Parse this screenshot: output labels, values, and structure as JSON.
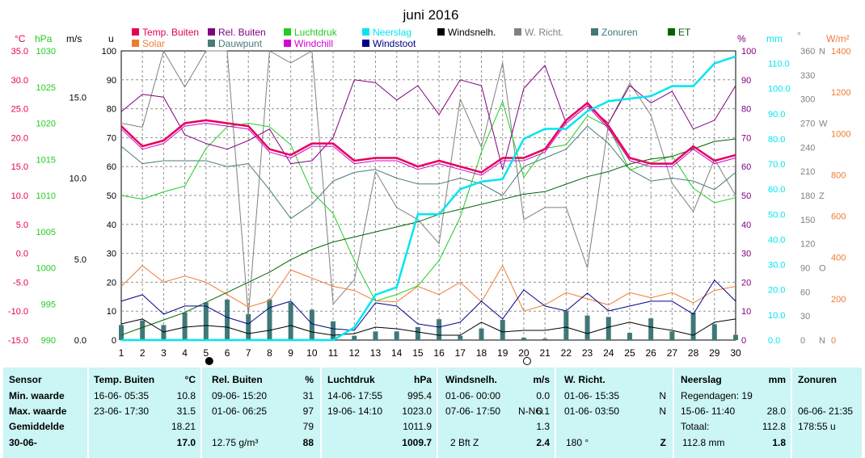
{
  "title": "juni 2016",
  "colors": {
    "temp": "#e6005a",
    "solar": "#f07a30",
    "hum": "#800080",
    "dew": "#4a7a7a",
    "press": "#22cc22",
    "windchill": "#d400d4",
    "rain": "#00e6f0",
    "gust": "#00008b",
    "wind": "#000000",
    "dir": "#808080",
    "sun": "#407878",
    "et": "#006400"
  },
  "legend": [
    {
      "label": "Temp. Buiten",
      "color": "#e6005a"
    },
    {
      "label": "Solar",
      "color": "#f07a30"
    },
    {
      "label": "Rel. Buiten",
      "color": "#800080"
    },
    {
      "label": "Dauwpunt",
      "color": "#4a7a7a"
    },
    {
      "label": "Luchtdruk",
      "color": "#22cc22"
    },
    {
      "label": "Windchill",
      "color": "#d400d4"
    },
    {
      "label": "Neerslag",
      "color": "#00e6f0"
    },
    {
      "label": "Windstoot",
      "color": "#00008b"
    },
    {
      "label": "Windsnelh.",
      "color": "#000000"
    },
    {
      "label": "W. Richt.",
      "color": "#808080"
    },
    {
      "label": "Zonuren",
      "color": "#407878"
    },
    {
      "label": "ET",
      "color": "#006400"
    }
  ],
  "axes": {
    "temp": {
      "unit": "°C",
      "ticks": [
        "35.0",
        "30.0",
        "25.0",
        "20.0",
        "15.0",
        "10.0",
        "5.0",
        "0.0",
        "-5.0",
        "-10.0",
        "-15.0"
      ]
    },
    "press": {
      "unit": "hPa",
      "ticks": [
        "1030",
        "1025",
        "1020",
        "1015",
        "1010",
        "1005",
        "1000",
        "995",
        "990"
      ]
    },
    "wind": {
      "unit": "m/s",
      "ticks": [
        "15.0",
        "10.0",
        "5.0",
        "0.0"
      ]
    },
    "u": {
      "unit": "u",
      "ticks": [
        "100",
        "90",
        "80",
        "70",
        "60",
        "50",
        "40",
        "30",
        "20",
        "10",
        "0"
      ]
    },
    "pct": {
      "unit": "%",
      "ticks": [
        "100",
        "90",
        "80",
        "70",
        "60",
        "50",
        "40",
        "30",
        "20",
        "10",
        "0"
      ]
    },
    "mm": {
      "unit": "mm",
      "ticks": [
        "110.0",
        "100.0",
        "90.0",
        "80.0",
        "70.0",
        "60.0",
        "50.0",
        "40.0",
        "30.0",
        "20.0",
        "10.0",
        "0.0"
      ]
    },
    "deg": {
      "unit": "°",
      "ticks": [
        "360",
        "330",
        "300",
        "270",
        "240",
        "210",
        "180",
        "150",
        "120",
        "90",
        "60",
        "30",
        "0"
      ]
    },
    "compass": [
      "N",
      "W",
      "Z",
      "O",
      "N"
    ],
    "wm2": {
      "unit": "W/m²",
      "ticks": [
        "1400",
        "1200",
        "1000",
        "800",
        "600",
        "400",
        "200",
        "0"
      ]
    }
  },
  "chart_data": {
    "type": "line",
    "x": [
      1,
      2,
      3,
      4,
      5,
      6,
      7,
      8,
      9,
      10,
      11,
      12,
      13,
      14,
      15,
      16,
      17,
      18,
      19,
      20,
      21,
      22,
      23,
      24,
      25,
      26,
      27,
      28,
      29,
      30
    ],
    "moon_markers": [
      {
        "day": 5,
        "phase": "full"
      },
      {
        "day": 20,
        "phase": "new"
      }
    ],
    "series": [
      {
        "name": "Temp. Buiten",
        "unit": "°C",
        "axis": "temp",
        "values": [
          22.0,
          18.5,
          19.5,
          22.5,
          23.0,
          22.5,
          22.0,
          18.0,
          17.0,
          19.0,
          19.0,
          16.0,
          16.5,
          16.5,
          15.0,
          16.0,
          15.0,
          14.0,
          16.5,
          16.5,
          18.0,
          23.0,
          26.0,
          22.0,
          16.5,
          15.5,
          15.5,
          18.5,
          16.0,
          17.0
        ]
      },
      {
        "name": "Windchill",
        "unit": "°C",
        "axis": "temp",
        "values": [
          21.5,
          18.0,
          19.0,
          22.0,
          22.5,
          22.0,
          21.5,
          17.5,
          16.5,
          18.5,
          18.5,
          15.5,
          16.0,
          16.0,
          14.5,
          15.5,
          14.5,
          13.5,
          16.0,
          16.0,
          17.5,
          22.5,
          25.5,
          21.5,
          16.0,
          15.0,
          15.0,
          18.0,
          15.5,
          16.5
        ]
      },
      {
        "name": "Dauwpunt",
        "unit": "°C",
        "axis": "temp",
        "values": [
          18.5,
          15.5,
          16.0,
          16.0,
          16.0,
          15.0,
          15.5,
          11.0,
          6.0,
          8.5,
          12.5,
          14.0,
          14.5,
          13.0,
          12.0,
          12.0,
          13.0,
          12.0,
          10.0,
          15.0,
          16.5,
          18.0,
          22.0,
          19.0,
          14.5,
          12.5,
          13.0,
          12.5,
          11.0,
          14.0
        ]
      },
      {
        "name": "Rel. Buiten",
        "unit": "%",
        "axis": "pct",
        "values": [
          79,
          85,
          84,
          71,
          68,
          66,
          69,
          73,
          61,
          62,
          70,
          90,
          89,
          83,
          88,
          78,
          90,
          88,
          59,
          87,
          95,
          75,
          81,
          75,
          88,
          82,
          86,
          73,
          76,
          88
        ]
      },
      {
        "name": "Luchtdruk",
        "unit": "hPa",
        "axis": "press",
        "values": [
          1010.0,
          1009.5,
          1010.5,
          1011.3,
          1016.5,
          1019.5,
          1020.0,
          1019.5,
          1017.0,
          1010.5,
          1007.5,
          1001.0,
          995.4,
          996.3,
          997.5,
          1001.0,
          1007.0,
          1016.0,
          1023.0,
          1012.5,
          1016.5,
          1017.0,
          1021.0,
          1019.5,
          1013.5,
          1014.5,
          1015.5,
          1011.0,
          1009.0,
          1009.7
        ]
      },
      {
        "name": "Neerslag",
        "unit": "mm",
        "axis": "mm",
        "values": [
          0,
          0,
          0,
          0,
          0,
          0,
          0,
          0,
          0,
          0,
          0,
          5,
          18,
          21,
          50,
          50,
          60,
          63,
          64,
          80,
          84,
          84,
          91,
          95,
          96,
          97,
          101,
          101,
          110,
          112.8
        ]
      },
      {
        "name": "ET",
        "unit": "mm",
        "axis": "mm",
        "values": [
          2,
          5,
          8,
          11,
          15,
          19,
          23,
          27,
          32,
          36,
          39,
          41,
          43,
          45,
          47,
          50,
          52,
          54,
          56,
          58,
          59,
          62,
          65,
          67,
          70,
          72,
          73,
          76,
          79,
          80
        ]
      },
      {
        "name": "Windsnelh.",
        "unit": "m/s",
        "axis": "wind",
        "values": [
          1.0,
          1.3,
          0.5,
          0.8,
          0.9,
          0.8,
          0.4,
          0.6,
          0.9,
          0.5,
          0.3,
          0.4,
          0.8,
          0.7,
          0.5,
          0.3,
          0.3,
          1.1,
          0.5,
          0.6,
          0.6,
          0.8,
          0.4,
          0.8,
          1.1,
          0.8,
          0.6,
          0.3,
          1.1,
          1.3
        ]
      },
      {
        "name": "Windstoot",
        "unit": "m/s",
        "axis": "wind",
        "values": [
          2.4,
          2.8,
          1.6,
          2.1,
          2.1,
          1.4,
          1.0,
          2.0,
          2.4,
          1.0,
          0.7,
          0.6,
          2.3,
          2.1,
          1.0,
          0.8,
          1.1,
          2.4,
          1.3,
          3.1,
          2.1,
          1.8,
          2.9,
          1.8,
          2.1,
          2.4,
          2.4,
          1.6,
          3.7,
          2.4
        ]
      },
      {
        "name": "W. Richt.",
        "unit": "°",
        "axis": "deg",
        "values": [
          270,
          265,
          360,
          315,
          360,
          360,
          30,
          360,
          345,
          360,
          45,
          75,
          210,
          165,
          150,
          120,
          300,
          240,
          345,
          150,
          165,
          165,
          90,
          270,
          320,
          280,
          195,
          160,
          225,
          180
        ]
      },
      {
        "name": "Solar",
        "unit": "W/m²",
        "axis": "wm2",
        "values": [
          260,
          360,
          280,
          310,
          280,
          220,
          160,
          190,
          340,
          300,
          260,
          240,
          190,
          185,
          260,
          220,
          280,
          185,
          360,
          140,
          170,
          230,
          200,
          170,
          230,
          205,
          230,
          180,
          240,
          260
        ]
      },
      {
        "name": "Zonuren",
        "unit": "u",
        "axis": "u",
        "values": [
          5.2,
          6.8,
          5.2,
          9.5,
          13.0,
          14.0,
          9.0,
          14.0,
          13.0,
          10.5,
          6.5,
          1.5,
          3.0,
          3.0,
          4.5,
          7.2,
          1.5,
          4.0,
          7.0,
          0.8,
          0.5,
          10.0,
          8.5,
          8.0,
          2.5,
          7.5,
          3.0,
          9.5,
          5.5,
          1.8
        ]
      }
    ]
  },
  "stats": {
    "rows": [
      "Sensor",
      "Min. waarde",
      "Max. waarde",
      "Gemiddelde",
      "30-06-"
    ],
    "temp": {
      "header": "Temp. Buiten",
      "unit": "°C",
      "min_time": "16-06- 05:35",
      "min": "10.8",
      "max_time": "23-06- 17:30",
      "max": "31.5",
      "avg": "18.21",
      "cur": "17.0"
    },
    "hum": {
      "header": "Rel. Buiten",
      "unit": "%",
      "min_time": "09-06- 15:20",
      "min": "31",
      "max_time": "01-06- 06:25",
      "max": "97",
      "avg": "79",
      "cur_extra": "12.75 g/m³",
      "cur": "88"
    },
    "press": {
      "header": "Luchtdruk",
      "unit": "hPa",
      "min_time": "14-06- 17:55",
      "min": "995.4",
      "max_time": "19-06- 14:10",
      "max": "1023.0",
      "avg": "1011.9",
      "cur": "1009.7"
    },
    "wind": {
      "header": "Windsnelh.",
      "unit": "m/s",
      "min_time": "01-06- 00:00",
      "min": "0.0",
      "max_time": "07-06- 17:50",
      "max_dir": "N-NO",
      "max": "6.1",
      "avg": "1.3",
      "cur_extra": "2 Bft Z",
      "cur": "2.4"
    },
    "dir": {
      "header": "W. Richt.",
      "min_time": "01-06- 15:35",
      "min": "N",
      "max_time": "01-06- 03:50",
      "max": "N",
      "cur_extra": "180 °",
      "cur": "Z"
    },
    "rain": {
      "header": "Neerslag",
      "unit": "mm",
      "regendagen": "Regendagen: 19",
      "max_time": "15-06- 11:40",
      "max": "28.0",
      "totaal_label": "Totaal:",
      "totaal": "112.8",
      "cur_extra": "112.8 mm",
      "cur": "1.8"
    },
    "sun": {
      "header": "Zonuren",
      "max_time": "06-06- 21:35",
      "total": "178:55 u"
    }
  }
}
